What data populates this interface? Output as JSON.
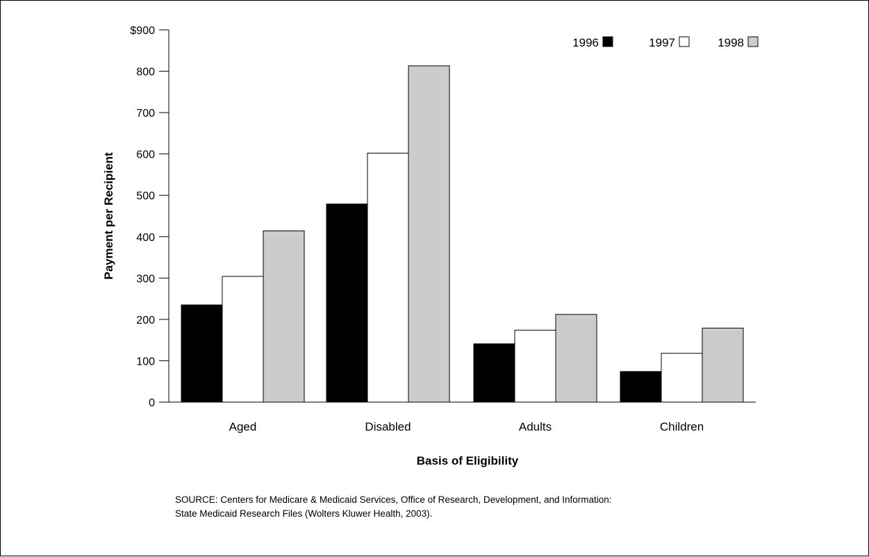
{
  "chart_data": {
    "type": "bar",
    "categories": [
      "Aged",
      "Disabled",
      "Adults",
      "Children"
    ],
    "series": [
      {
        "name": "1996",
        "values": [
          235,
          479,
          141,
          74
        ],
        "color": "#000000"
      },
      {
        "name": "1997",
        "values": [
          304,
          602,
          174,
          118
        ],
        "color": "#ffffff"
      },
      {
        "name": "1998",
        "values": [
          414,
          813,
          212,
          179
        ],
        "color": "#cccccc"
      }
    ],
    "ylabel": "Payment per Recipient",
    "xlabel": "Basis of Eligibility",
    "ylim": [
      0,
      900
    ],
    "yticks": [
      0,
      100,
      200,
      300,
      400,
      500,
      600,
      700,
      800,
      900
    ],
    "ytick_labels": [
      "0",
      "100",
      "200",
      "300",
      "400",
      "500",
      "600",
      "700",
      "800",
      "$900"
    ],
    "legend_position": "top-right",
    "grid": false
  },
  "source_lines": [
    "SOURCE: Centers for Medicare & Medicaid Services, Office of Research, Development, and Information:",
    "State Medicaid Research Files (Wolters Kluwer Health, 2003)."
  ]
}
